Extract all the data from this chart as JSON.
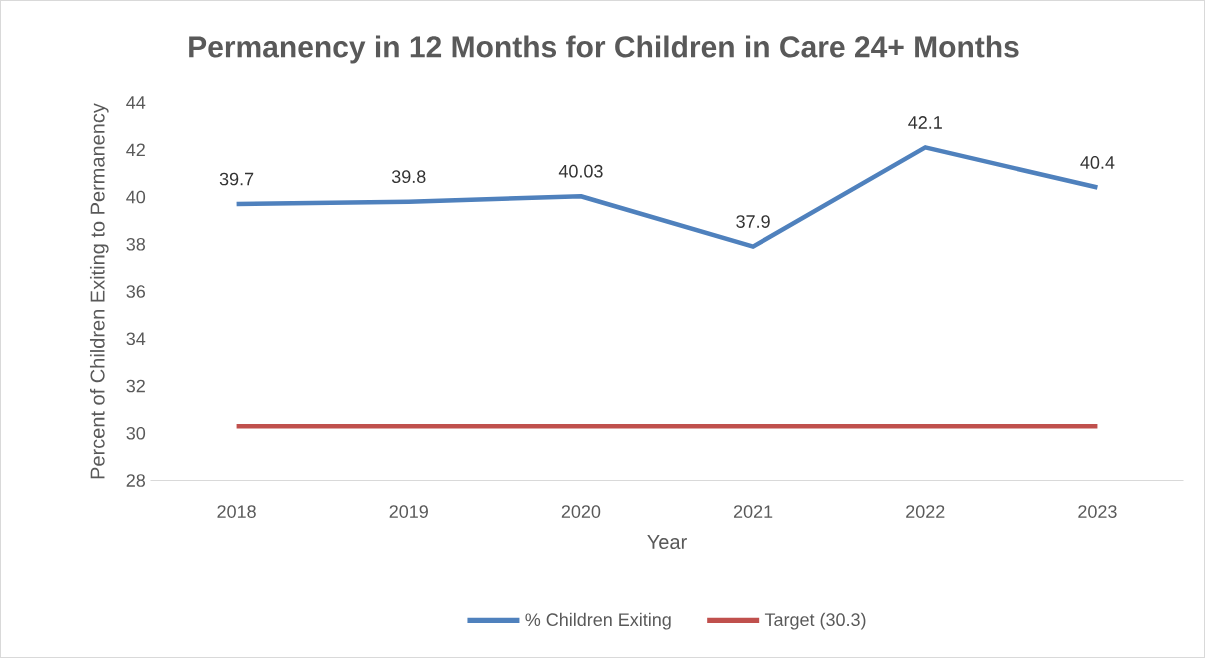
{
  "chart_data": {
    "type": "line",
    "title": "Permanency in 12 Months for Children in Care 24+ Months",
    "xlabel": "Year",
    "ylabel": "Percent of Children Exiting to Permanency",
    "categories": [
      "2018",
      "2019",
      "2020",
      "2021",
      "2022",
      "2023"
    ],
    "series": [
      {
        "name": "% Children Exiting",
        "color": "#4f81bd",
        "values": [
          39.7,
          39.8,
          40.03,
          37.9,
          42.1,
          40.4
        ],
        "value_labels": [
          "39.7",
          "39.8",
          "40.03",
          "37.9",
          "42.1",
          "40.4"
        ]
      },
      {
        "name": "Target (30.3)",
        "color": "#c0504d",
        "values": [
          30.3,
          30.3,
          30.3,
          30.3,
          30.3,
          30.3
        ]
      }
    ],
    "ylim": [
      28,
      44
    ],
    "yticks": [
      28,
      30,
      32,
      34,
      36,
      38,
      40,
      42,
      44
    ],
    "legend": "bottom",
    "marker": "none",
    "line_style": "solid"
  }
}
